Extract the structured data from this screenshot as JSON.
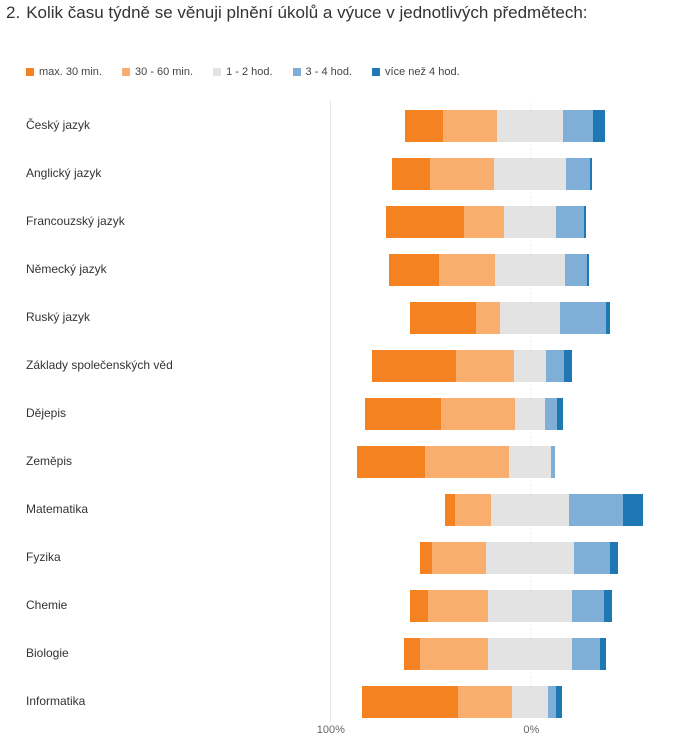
{
  "question": {
    "number": "2.",
    "text": "Kolik času týdně se věnuji plnění úkolů a výuce v jednotlivých předmětech:"
  },
  "chart_data": {
    "type": "bar",
    "orientation": "horizontal",
    "stacking": "diverging",
    "categories": [
      "Český jazyk",
      "Anglický jazyk",
      "Francouzský jazyk",
      "Německý jazyk",
      "Ruský jazyk",
      "Základy společenských věd",
      "Dějepis",
      "Zeměpis",
      "Matematika",
      "Fyzika",
      "Chemie",
      "Biologie",
      "Informatika"
    ],
    "series": [
      {
        "name": "max. 30 min.",
        "color": "#f58220",
        "values": [
          19,
          19,
          39,
          25,
          33,
          42,
          38,
          34,
          5,
          6,
          9,
          8,
          48
        ]
      },
      {
        "name": "30 - 60 min.",
        "color": "#f9ae6d",
        "values": [
          27,
          32,
          20,
          28,
          12,
          29,
          37,
          42,
          18,
          27,
          30,
          34,
          27
        ]
      },
      {
        "name": "1 - 2 hod.",
        "color": "#e3e3e3",
        "values": [
          33,
          36,
          26,
          35,
          30,
          16,
          15,
          21,
          39,
          44,
          42,
          42,
          18
        ]
      },
      {
        "name": "3 - 4 hod.",
        "color": "#7fafd6",
        "values": [
          15,
          12,
          14,
          11,
          23,
          9,
          6,
          2,
          27,
          18,
          16,
          14,
          4
        ]
      },
      {
        "name": "více než 4 hod.",
        "color": "#1f77b4",
        "values": [
          6,
          1,
          1,
          1,
          2,
          4,
          3,
          0,
          10,
          4,
          4,
          3,
          3
        ]
      }
    ],
    "neutral_series": "1 - 2 hod.",
    "x_tick_labels": [
      "100%",
      "0%"
    ],
    "xlim": [
      -100,
      100
    ],
    "legend_position": "top-left"
  }
}
